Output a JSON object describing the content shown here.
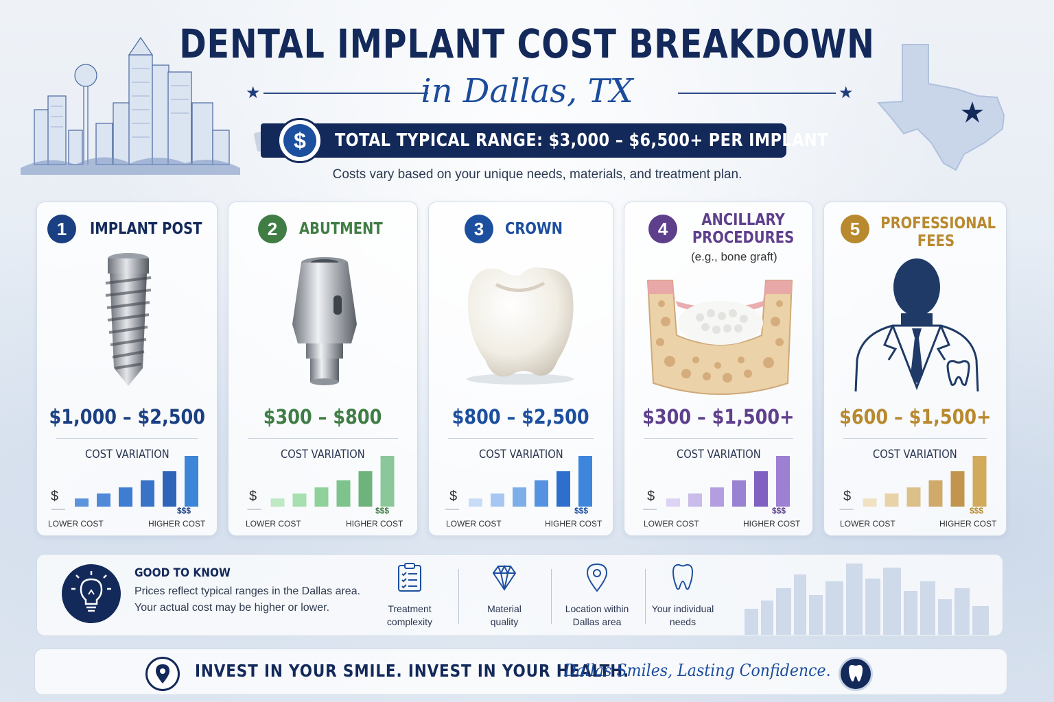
{
  "header": {
    "title": "DENTAL IMPLANT COST BREAKDOWN",
    "subtitle": "in Dallas, TX",
    "range_label": "TOTAL TYPICAL RANGE:",
    "range_value": "$3,000 – $6,500+ PER IMPLANT",
    "note": "Costs vary based on your unique needs, materials, and treatment plan."
  },
  "colors": {
    "navy": "#13295a",
    "blue": "#1c4f9e",
    "green": "#3f7d45",
    "purple": "#5e3f8c",
    "gold": "#b8892e"
  },
  "cards": [
    {
      "number": "1",
      "title": "IMPLANT POST",
      "subtitle": "",
      "price": "$1,000 – $2,500",
      "color": "#1a3f82",
      "cost_label": "COST VARIATION",
      "low_label": "LOWER COST",
      "high_label": "HIGHER COST",
      "low_symbol": "$",
      "high_symbol": "$$$",
      "image": "implant-screw-image"
    },
    {
      "number": "2",
      "title": "ABUTMENT",
      "subtitle": "",
      "price": "$300 – $800",
      "color": "#3f7d45",
      "cost_label": "COST VARIATION",
      "low_label": "LOWER COST",
      "high_label": "HIGHER COST",
      "low_symbol": "$",
      "high_symbol": "$$$",
      "image": "abutment-image"
    },
    {
      "number": "3",
      "title": "CROWN",
      "subtitle": "",
      "price": "$800 – $2,500",
      "color": "#1c4f9e",
      "cost_label": "COST VARIATION",
      "low_label": "LOWER COST",
      "high_label": "HIGHER COST",
      "low_symbol": "$",
      "high_symbol": "$$$",
      "image": "crown-image"
    },
    {
      "number": "4",
      "title_line1": "ANCILLARY",
      "title_line2": "PROCEDURES",
      "subtitle": "(e.g., bone graft)",
      "price": "$300 – $1,500+",
      "color": "#5e3f8c",
      "cost_label": "COST VARIATION",
      "low_label": "LOWER COST",
      "high_label": "HIGHER COST",
      "low_symbol": "$",
      "high_symbol": "$$$",
      "image": "bone-graft-image"
    },
    {
      "number": "5",
      "title_line1": "PROFESSIONAL",
      "title_line2": "FEES",
      "subtitle": "",
      "price": "$600 – $1,500+",
      "color": "#b8892e",
      "cost_label": "COST VARIATION",
      "low_label": "LOWER COST",
      "high_label": "HIGHER COST",
      "low_symbol": "$",
      "high_symbol": "$$$",
      "image": "dentist-silhouette-image"
    }
  ],
  "bar_levels": [
    0.16,
    0.26,
    0.38,
    0.52,
    0.7,
    1.0
  ],
  "bar_palettes": [
    [
      "#5d93dc",
      "#4f89d8",
      "#3f7dd2",
      "#3873c8",
      "#2f65b8",
      "#3d85d6"
    ],
    [
      "#bfe8c4",
      "#a8dfb1",
      "#8fd19b",
      "#7ec38b",
      "#6fb37c",
      "#8cc79a"
    ],
    [
      "#c8dcf7",
      "#a7c7f2",
      "#7daeea",
      "#5593e0",
      "#2e6fce",
      "#3e86dc"
    ],
    [
      "#ddd3f2",
      "#c9bbea",
      "#b39fe0",
      "#9a82d2",
      "#8060c0",
      "#9d80d2"
    ],
    [
      "#f0e1c2",
      "#e8d2a8",
      "#dcc08a",
      "#cfaa6a",
      "#c2954f",
      "#d2aa5c"
    ]
  ],
  "good_to_know": {
    "title": "GOOD TO KNOW",
    "line1": "Prices reflect typical ranges in the Dallas area.",
    "line2": "Your actual cost may be higher or lower.",
    "factors": [
      {
        "line1": "Treatment",
        "line2": "complexity",
        "icon": "clipboard-icon"
      },
      {
        "line1": "Material",
        "line2": "quality",
        "icon": "diamond-icon"
      },
      {
        "line1": "Location within",
        "line2": "Dallas area",
        "icon": "location-pin-icon"
      },
      {
        "line1": "Your individual",
        "line2": "needs",
        "icon": "tooth-icon"
      }
    ]
  },
  "footer": {
    "tagline": "INVEST IN YOUR SMILE. INVEST IN YOUR HEALTH.",
    "script_tagline": "Dallas Smiles, Lasting Confidence."
  }
}
